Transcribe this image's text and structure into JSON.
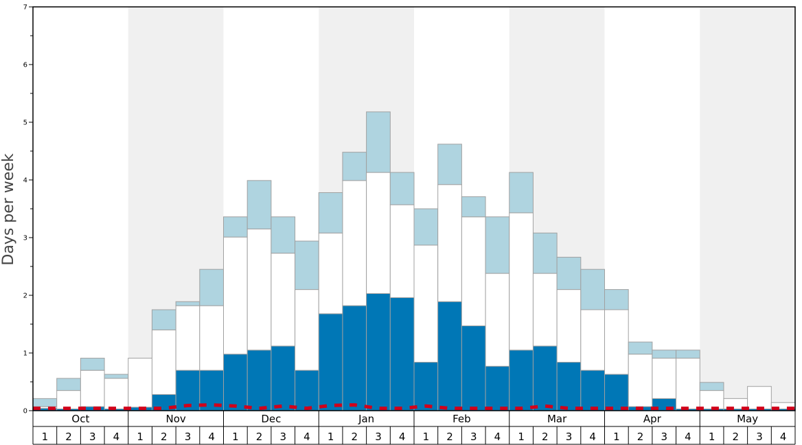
{
  "chart_data": {
    "type": "bar",
    "ylabel": "Days per week",
    "ylim": [
      0,
      7
    ],
    "y_ticks": [
      "0",
      "1",
      "2",
      "3",
      "4",
      "5",
      "6",
      "7"
    ],
    "months": [
      "Oct",
      "Nov",
      "Dec",
      "Jan",
      "Feb",
      "Mar",
      "Apr",
      "May"
    ],
    "weeks": [
      "1",
      "2",
      "3",
      "4"
    ],
    "stack_order": [
      "bottom",
      "middle",
      "top"
    ],
    "colors": {
      "bottom": "#0077b6",
      "middle": "#ffffff",
      "top": "#afd4e0",
      "dashed_line": "#d0021b",
      "alt_month_band": "#f0f0f0",
      "bar_outline": "#a0a0a0"
    },
    "series": [
      {
        "key": "bottom",
        "values": [
          0.04,
          0.03,
          0.07,
          0.03,
          0.06,
          0.28,
          0.7,
          0.7,
          0.98,
          1.05,
          1.12,
          0.7,
          1.68,
          1.82,
          2.03,
          1.96,
          0.84,
          1.89,
          1.47,
          0.77,
          1.05,
          1.12,
          0.84,
          0.7,
          0.63,
          0.07,
          0.21,
          0.03,
          0.03,
          0.03,
          0.03,
          0.03
        ]
      },
      {
        "key": "middle",
        "values": [
          0.03,
          0.32,
          0.63,
          0.53,
          0.85,
          1.12,
          1.12,
          1.12,
          2.03,
          2.1,
          1.61,
          1.4,
          1.4,
          2.17,
          2.1,
          1.61,
          2.03,
          2.03,
          1.89,
          1.61,
          2.38,
          1.26,
          1.26,
          1.05,
          1.12,
          0.91,
          0.7,
          0.88,
          0.32,
          0.18,
          0.39,
          0.11
        ]
      },
      {
        "key": "top",
        "values": [
          0.14,
          0.21,
          0.21,
          0.07,
          0.0,
          0.35,
          0.07,
          0.63,
          0.35,
          0.84,
          0.63,
          0.84,
          0.7,
          0.49,
          1.05,
          0.56,
          0.63,
          0.7,
          0.35,
          0.98,
          0.7,
          0.7,
          0.56,
          0.7,
          0.35,
          0.21,
          0.14,
          0.14,
          0.14,
          0.0,
          0.0,
          0.0
        ]
      },
      {
        "key": "dashed_line",
        "values": [
          0.04,
          0.04,
          0.04,
          0.04,
          0.04,
          0.04,
          0.09,
          0.1,
          0.08,
          0.04,
          0.08,
          0.04,
          0.09,
          0.1,
          0.04,
          0.04,
          0.08,
          0.04,
          0.04,
          0.04,
          0.04,
          0.08,
          0.04,
          0.04,
          0.04,
          0.04,
          0.04,
          0.04,
          0.04,
          0.04,
          0.04,
          0.04
        ]
      }
    ]
  }
}
